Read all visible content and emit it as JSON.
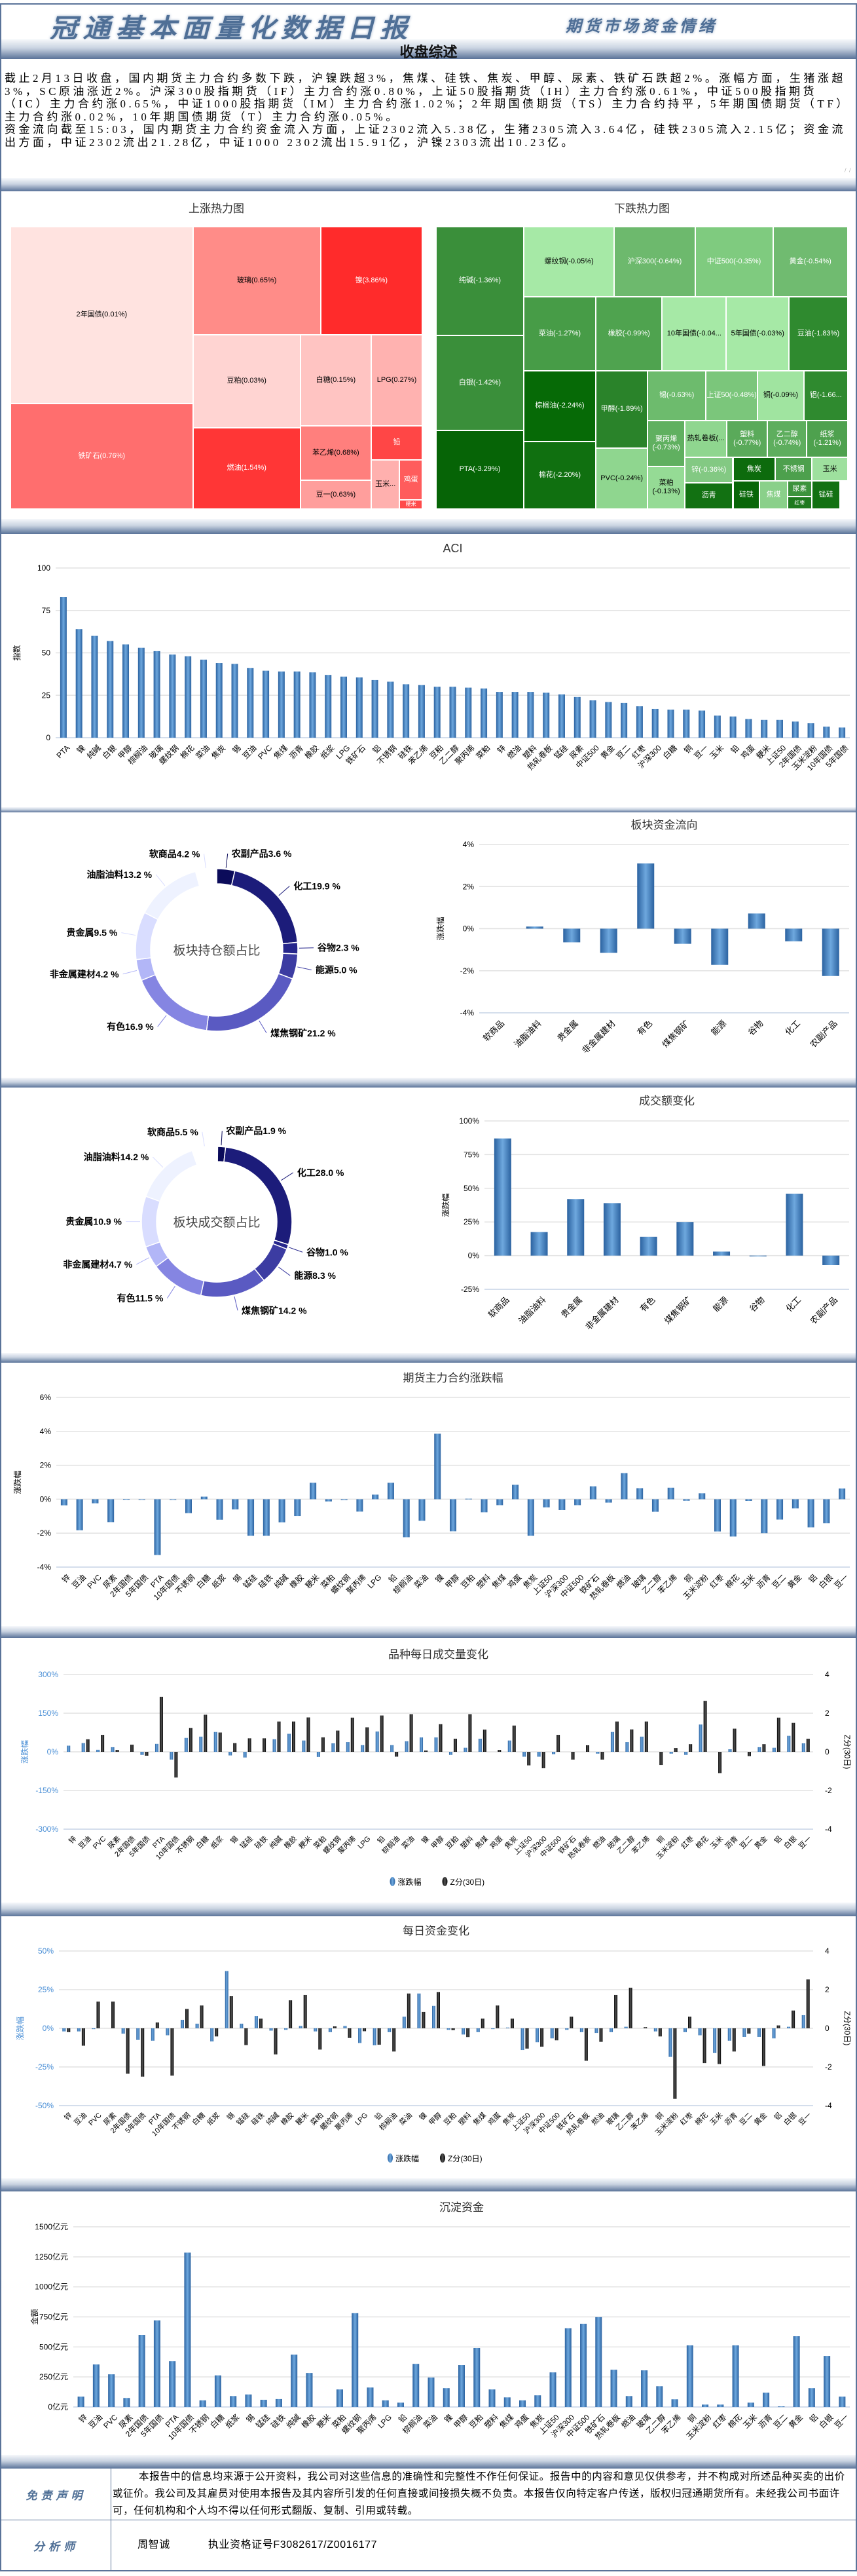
{
  "header": {
    "title": "冠通基本面量化数据日报",
    "subtitle": "期货市场资金情绪",
    "section_title": "收盘综述"
  },
  "summary": {
    "p1": "截止2月13日收盘，国内期货主力合约多数下跌，沪镍跌超3%，焦煤、硅铁、焦炭、甲醇、尿素、铁矿石跌超2%。涨幅方面，生猪涨超3%，SC原油涨近2%。沪深300股指期货（IF）主力合约涨0.80%，上证50股指期货（IH）主力合约涨0.61%，中证500股指期货（IC）主力合约涨0.65%，中证1000股指期货（IM）主力合约涨1.02%；2年期国债期货（TS）主力合约持平，5年期国债期货（TF）主力合约涨0.02%，10年期国债期货（T）主力合约涨0.05%。",
    "p2": "资金流向截至15:03，国内期货主力合约资金流入方面，上证2302流入5.38亿，生猪2305流入3.64亿，硅铁2305流入2.15亿；资金流出方面，中证2302流出21.28亿，中证1000 2302流出15.91亿，沪镍2303流出10.23亿。"
  },
  "treemap_up": {
    "title": "上涨热力图",
    "cells": [
      "2年国债(0.01%)",
      "铁矿石(0.76%)",
      "玻璃(0.65%)",
      "镍(3.86%)",
      "豆粕(0.03%)",
      "燃油(1.54%)",
      "白糖(0.15%)",
      "LPG(0.27%)",
      "苯乙烯(0.68%)",
      "豆一(0.63%)",
      "铅",
      "玉米...",
      "鸡蛋",
      "粳米"
    ]
  },
  "treemap_down": {
    "title": "下跌热力图",
    "cells": [
      "纯碱(-1.36%)",
      "白银(-1.42%)",
      "PTA(-3.29%)",
      "螺纹钢(-0.05%)",
      "沪深300(-0.64%)",
      "中证500(-0.35%)",
      "黄金(-0.54%)",
      "菜油(-1.27%)",
      "橡胶(-0.99%)",
      "10年国债(-0.04...",
      "5年国债(-0.03%)",
      "豆油(-1.83%)",
      "棕榈油(-2.24%)",
      "棉花(-2.20%)",
      "甲醇(-1.89%)",
      "PVC(-0.24%)",
      "锡(-0.63%)",
      "上证50(-0.48%)",
      "铜(-0.09%)",
      "铝(-1.66...",
      "聚丙烯(-0.73%)",
      "菜粕(-0.13%)",
      "热轧卷板(...",
      "塑料(-0.77%)",
      "乙二醇(-0.74%)",
      "纸浆(-1.21%)",
      "锌(-0.36%)",
      "沥青",
      "焦炭",
      "不锈钢",
      "玉米",
      "硅铁",
      "焦煤",
      "尿素",
      "红枣",
      "锰硅"
    ]
  },
  "chart_data": [
    {
      "id": "aci",
      "type": "bar",
      "title": "ACI",
      "ylabel": "指数",
      "ylim": [
        0,
        100
      ],
      "yticks": [
        "100",
        "75",
        "50",
        "25",
        "0"
      ],
      "categories": [
        "PTA",
        "镍",
        "纯碱",
        "白银",
        "甲醇",
        "棕榈油",
        "玻璃",
        "螺纹钢",
        "棉花",
        "菜油",
        "焦炭",
        "锡",
        "豆油",
        "PVC",
        "焦煤",
        "沥青",
        "橡胶",
        "纸浆",
        "LPG",
        "铁矿石",
        "铝",
        "不锈钢",
        "硅铁",
        "苯乙烯",
        "豆粕",
        "乙二醇",
        "聚丙烯",
        "菜粕",
        "锌",
        "燃油",
        "塑料",
        "热轧卷板",
        "锰硅",
        "尿素",
        "中证500",
        "黄金",
        "豆二",
        "红枣",
        "沪深300",
        "白糖",
        "铜",
        "豆一",
        "玉米",
        "铅",
        "鸡蛋",
        "粳米",
        "上证50",
        "2年国债",
        "玉米淀粉",
        "10年国债",
        "5年国债"
      ],
      "series": [
        {
          "values": [
            83,
            64,
            60,
            57,
            55,
            53,
            51,
            49,
            48,
            46,
            44,
            43.5,
            41,
            39.5,
            39,
            39,
            38.5,
            37,
            36,
            35.5,
            34,
            33,
            31.5,
            31,
            30,
            30,
            29.5,
            29,
            27,
            27,
            27,
            26.5,
            25.5,
            24,
            22,
            21,
            20.5,
            18.5,
            17,
            16.5,
            16.5,
            16,
            13,
            12.5,
            11,
            10.5,
            10.5,
            9.5,
            8.5,
            6.5,
            6
          ],
          "color": "#3d7cc0"
        }
      ]
    },
    {
      "id": "sector_flow",
      "type": "bar",
      "title": "板块资金流向",
      "ylabel": "涨跌幅",
      "ylim": [
        -4,
        4
      ],
      "yticks": [
        "4%",
        "2%",
        "0%",
        "-2%",
        "-4%"
      ],
      "categories": [
        "软商品",
        "油脂油料",
        "贵金属",
        "非金属建材",
        "有色",
        "煤焦钢矿",
        "能源",
        "谷物",
        "化工",
        "农副产品"
      ],
      "series": [
        {
          "values": [
            0,
            0.1,
            -0.65,
            -1.15,
            3.1,
            -0.72,
            -1.72,
            0.72,
            -0.6,
            -2.25
          ],
          "color": "#3d7cc0"
        }
      ]
    },
    {
      "id": "turnover_change",
      "type": "bar",
      "title": "成交额变化",
      "ylabel": "涨跌幅",
      "ylim": [
        -25,
        100
      ],
      "yticks": [
        "100%",
        "75%",
        "50%",
        "25%",
        "0%",
        "-25%"
      ],
      "categories": [
        "软商品",
        "油脂油料",
        "贵金属",
        "非金属建材",
        "有色",
        "煤焦钢矿",
        "能源",
        "谷物",
        "化工",
        "农副产品"
      ],
      "series": [
        {
          "values": [
            87,
            17.5,
            42,
            39,
            14,
            25,
            3,
            -0.5,
            46,
            -7
          ],
          "color": "#3d7cc0"
        }
      ]
    },
    {
      "id": "main_change",
      "type": "bar",
      "title": "期货主力合约涨跌幅",
      "ylabel": "涨跌幅",
      "ylim": [
        -4,
        6
      ],
      "yticks": [
        "6%",
        "4%",
        "2%",
        "0%",
        "-2%",
        "-4%"
      ],
      "categories": [
        "锌",
        "豆油",
        "PVC",
        "尿素",
        "2年国债",
        "5年国债",
        "PTA",
        "10年国债",
        "不锈钢",
        "白糖",
        "纸浆",
        "锡",
        "锰硅",
        "硅铁",
        "纯碱",
        "橡胶",
        "粳米",
        "菜粕",
        "螺纹钢",
        "聚丙烯",
        "LPG",
        "铅",
        "棕榈油",
        "菜油",
        "镍",
        "甲醇",
        "豆粕",
        "塑料",
        "焦煤",
        "鸡蛋",
        "焦炭",
        "上证50",
        "沪深300",
        "中证500",
        "铁矿石",
        "热轧卷板",
        "燃油",
        "玻璃",
        "乙二醇",
        "苯乙烯",
        "铜",
        "玉米淀粉",
        "红枣",
        "棉花",
        "玉米",
        "沥青",
        "豆二",
        "黄金",
        "铝",
        "白银",
        "豆一"
      ],
      "series": [
        {
          "values": [
            -0.36,
            -1.83,
            -0.24,
            -1.35,
            0.01,
            -0.03,
            -3.29,
            -0.04,
            -0.82,
            0.15,
            -1.21,
            -0.6,
            -2.15,
            -2.15,
            -1.36,
            -0.99,
            0.97,
            -0.13,
            -0.05,
            -0.73,
            0.27,
            0.97,
            -2.24,
            -1.27,
            3.86,
            -1.89,
            0.03,
            -0.77,
            -0.35,
            0.85,
            -2.15,
            -0.48,
            -0.64,
            -0.35,
            0.76,
            -0.2,
            1.54,
            0.65,
            -0.74,
            0.68,
            -0.09,
            0.35,
            -1.9,
            -2.2,
            -0.1,
            -2.0,
            -1.2,
            -0.54,
            -1.66,
            -1.42,
            0.63
          ],
          "color": "#3d7cc0"
        }
      ]
    },
    {
      "id": "volume_change",
      "type": "bar",
      "title": "品种每日成交量变化",
      "ylabel": "涨跌幅",
      "y2label": "Z分(30日)",
      "ylim": [
        -300,
        300
      ],
      "yticks": [
        "300%",
        "150%",
        "0%",
        "-150%",
        "-300%"
      ],
      "y2lim": [
        -4,
        4
      ],
      "y2ticks": [
        "4",
        "2",
        "0",
        "-2",
        "-4"
      ],
      "categories": [
        "锌",
        "豆油",
        "PVC",
        "尿素",
        "2年国债",
        "5年国债",
        "PTA",
        "10年国债",
        "不锈钢",
        "白糖",
        "纸浆",
        "锡",
        "锰硅",
        "硅铁",
        "纯碱",
        "橡胶",
        "粳米",
        "菜粕",
        "螺纹钢",
        "聚丙烯",
        "LPG",
        "铅",
        "棕榈油",
        "菜油",
        "镍",
        "甲醇",
        "豆粕",
        "塑料",
        "焦煤",
        "鸡蛋",
        "焦炭",
        "上证50",
        "沪深300",
        "中证500",
        "铁矿石",
        "热轧卷板",
        "燃油",
        "玻璃",
        "乙二醇",
        "苯乙烯",
        "铜",
        "玉米淀粉",
        "红枣",
        "棉花",
        "玉米",
        "沥青",
        "豆二",
        "黄金",
        "铝",
        "白银",
        "豆一"
      ],
      "legend": [
        "涨跌幅",
        "Z分(30日)"
      ],
      "series": [
        {
          "name": "涨跌幅",
          "values": [
            24,
            34,
            8,
            18,
            0,
            -12,
            31,
            -30,
            54,
            59,
            77,
            -14,
            -22,
            0,
            49,
            70,
            44,
            -20,
            33,
            38,
            26,
            79,
            26,
            41,
            56,
            56,
            -12,
            16,
            51,
            0,
            44,
            -19,
            -19,
            -9,
            0,
            0,
            -7,
            77,
            38,
            59,
            0,
            -7,
            -12,
            106,
            0,
            10,
            0,
            18,
            16,
            62,
            33
          ],
          "color": "#3d7cc0"
        },
        {
          "name": "Z分(30日)",
          "axis": "y2",
          "values": [
            0,
            0.65,
            0.88,
            0.1,
            0.37,
            -0.2,
            2.85,
            -1.33,
            1.23,
            1.92,
            1.0,
            0.45,
            0.7,
            0.7,
            1.57,
            1.57,
            1.78,
            0.75,
            1.1,
            1.77,
            1.27,
            1.88,
            -0.25,
            1.95,
            0.07,
            1.43,
            0.68,
            1.95,
            1.15,
            0.1,
            1.36,
            -0.7,
            -0.85,
            0.88,
            -0.4,
            0.34,
            -0.4,
            1.57,
            1.16,
            1.57,
            -0.68,
            0.2,
            0.4,
            2.64,
            -1.1,
            1.2,
            -0.22,
            0.4,
            1.77,
            1.5,
            0.68
          ],
          "color": "#111111"
        }
      ]
    },
    {
      "id": "fund_change",
      "type": "bar",
      "title": "每日资金变化",
      "ylabel": "涨跌幅",
      "y2label": "Z分(30日)",
      "ylim": [
        -50,
        50
      ],
      "yticks": [
        "50%",
        "25%",
        "0%",
        "-25%",
        "-50%"
      ],
      "y2lim": [
        -4,
        4
      ],
      "y2ticks": [
        "4",
        "2",
        "0",
        "-2",
        "-4"
      ],
      "categories": [
        "锌",
        "豆油",
        "PVC",
        "尿素",
        "2年国债",
        "5年国债",
        "PTA",
        "10年国债",
        "不锈钢",
        "白糖",
        "纸浆",
        "锡",
        "锰硅",
        "硅铁",
        "纯碱",
        "橡胶",
        "粳米",
        "菜粕",
        "螺纹钢",
        "聚丙烯",
        "LPG",
        "铅",
        "棕榈油",
        "菜油",
        "镍",
        "甲醇",
        "豆粕",
        "塑料",
        "焦煤",
        "鸡蛋",
        "焦炭",
        "上证50",
        "沪深300",
        "中证500",
        "铁矿石",
        "热轧卷板",
        "燃油",
        "玻璃",
        "乙二醇",
        "苯乙烯",
        "铜",
        "玉米淀粉",
        "红枣",
        "棉花",
        "玉米",
        "沥青",
        "豆二",
        "黄金",
        "铝",
        "白银",
        "豆一"
      ],
      "legend": [
        "涨跌幅",
        "Z分(30日)"
      ],
      "series": [
        {
          "name": "涨跌幅",
          "values": [
            -2,
            -2,
            -0.5,
            0,
            -3.5,
            -7.5,
            -8,
            -4.5,
            5.5,
            3,
            -8.5,
            37,
            3,
            8,
            -1.5,
            -1,
            1.5,
            -2,
            -2.5,
            1.5,
            -9.5,
            -11,
            -2.5,
            7.5,
            22.5,
            14.5,
            -1,
            -4,
            -2.5,
            -0.5,
            0.5,
            -14,
            -9,
            -6.5,
            -1,
            -2.5,
            -3,
            -2.5,
            1,
            0,
            -2,
            -18.5,
            -2.5,
            -4.5,
            -16,
            -8,
            -5.5,
            -5.5,
            -6.5,
            1,
            8.5
          ],
          "color": "#3d7cc0"
        },
        {
          "name": "Z分(30日)",
          "axis": "y2",
          "values": [
            -0.2,
            -0.9,
            1.38,
            1.38,
            -2.35,
            -2.5,
            0.3,
            -2.45,
            1.0,
            1.18,
            -0.42,
            1.66,
            -0.87,
            0.5,
            -1.35,
            1.45,
            1.73,
            -1.1,
            0.1,
            -0.5,
            -0.15,
            -0.85,
            -1.2,
            1.8,
            0.85,
            1.87,
            -0.1,
            -0.45,
            0.5,
            1.18,
            0.5,
            -1.05,
            -0.95,
            -0.62,
            0.6,
            -1.68,
            -0.7,
            1.73,
            2.1,
            0.06,
            -0.42,
            -3.65,
            0.6,
            -1.8,
            -1.85,
            -1.2,
            -0.28,
            -1.95,
            0.15,
            0.92,
            2.53
          ],
          "color": "#111111"
        }
      ]
    },
    {
      "id": "settled_funds",
      "type": "bar",
      "title": "沉淀资金",
      "ylabel": "金额",
      "ylim": [
        0,
        1500
      ],
      "yticks": [
        "1500亿元",
        "1250亿元",
        "1000亿元",
        "750亿元",
        "500亿元",
        "250亿元",
        "0亿元"
      ],
      "categories": [
        "锌",
        "豆油",
        "PVC",
        "尿素",
        "2年国债",
        "5年国债",
        "PTA",
        "10年国债",
        "不锈钢",
        "白糖",
        "纸浆",
        "锡",
        "锰硅",
        "硅铁",
        "纯碱",
        "橡胶",
        "粳米",
        "菜粕",
        "螺纹钢",
        "聚丙烯",
        "LPG",
        "铅",
        "棕榈油",
        "菜油",
        "镍",
        "甲醇",
        "豆粕",
        "塑料",
        "焦煤",
        "鸡蛋",
        "焦炭",
        "上证50",
        "沪深300",
        "中证500",
        "铁矿石",
        "热轧卷板",
        "燃油",
        "玻璃",
        "乙二醇",
        "苯乙烯",
        "铜",
        "玉米淀粉",
        "红枣",
        "棉花",
        "玉米",
        "沥青",
        "豆二",
        "黄金",
        "铝",
        "白银",
        "豆一"
      ],
      "series": [
        {
          "values": [
            86,
            354,
            272,
            75,
            600,
            721,
            381,
            1285,
            55,
            263,
            91,
            104,
            60,
            66,
            436,
            283,
            0,
            146,
            781,
            162,
            55,
            36,
            359,
            245,
            157,
            349,
            491,
            146,
            80,
            55,
            97,
            288,
            655,
            693,
            748,
            310,
            91,
            305,
            173,
            64,
            513,
            20,
            20,
            513,
            36,
            119,
            5,
            589,
            157,
            425,
            86
          ],
          "color": "#3d7cc0"
        }
      ]
    },
    {
      "id": "position_share",
      "type": "pie",
      "title": "板块持仓额占比",
      "segments": [
        {
          "label": "农副产品3.6 %",
          "value": 3.6
        },
        {
          "label": "化工19.9 %",
          "value": 19.9
        },
        {
          "label": "谷物2.3 %",
          "value": 2.3
        },
        {
          "label": "能源5.0 %",
          "value": 5.0
        },
        {
          "label": "煤焦钢矿21.2 %",
          "value": 21.2
        },
        {
          "label": "有色16.9 %",
          "value": 16.9
        },
        {
          "label": "非金属建材4.2 %",
          "value": 4.2
        },
        {
          "label": "贵金属9.5 %",
          "value": 9.5
        },
        {
          "label": "油脂油料13.2 %",
          "value": 13.2
        },
        {
          "label": "软商品4.2 %",
          "value": 4.2
        }
      ]
    },
    {
      "id": "turnover_share",
      "type": "pie",
      "title": "板块成交额占比",
      "segments": [
        {
          "label": "农副产品1.9 %",
          "value": 1.9
        },
        {
          "label": "化工28.0 %",
          "value": 28.0
        },
        {
          "label": "谷物1.0 %",
          "value": 1.0
        },
        {
          "label": "能源8.3 %",
          "value": 8.3
        },
        {
          "label": "煤焦钢矿14.2 %",
          "value": 14.2
        },
        {
          "label": "有色11.5 %",
          "value": 11.5
        },
        {
          "label": "非金属建材4.7 %",
          "value": 4.7
        },
        {
          "label": "贵金属10.9 %",
          "value": 10.9
        },
        {
          "label": "油脂油料14.2 %",
          "value": 14.2
        },
        {
          "label": "软商品5.5 %",
          "value": 5.5
        }
      ]
    }
  ],
  "footer": {
    "disclaimer_label": "免责声明",
    "disclaimer": "本报告中的信息均来源于公开资料，我公司对这些信息的准确性和完整性不作任何保证。报告中的内容和意见仅供参考，并不构成对所述品种买卖的出价或征价。我公司及其雇员对使用本报告及其内容所引发的任何直接或间接损失概不负责。本报告仅向特定客户传送，版权归冠通期货所有。未经我公司书面许可，任何机构和个人均不得以任何形式翻版、复制、引用或转载。",
    "analyst_label": "分析师",
    "analyst_name": "周智诚",
    "license": "执业资格证号F3082617/Z0016177"
  }
}
